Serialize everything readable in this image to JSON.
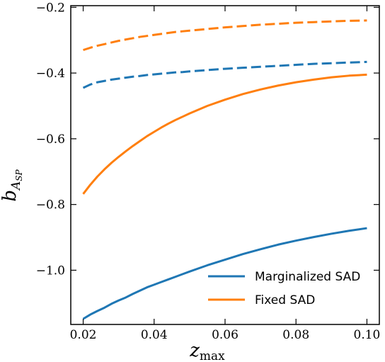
{
  "chart_data": {
    "type": "line",
    "xlabel": {
      "base": "z",
      "sub": "max"
    },
    "ylabel": {
      "base": "b",
      "sub": "A",
      "subsub": "SP"
    },
    "xlim": [
      0.0165,
      0.1035
    ],
    "ylim": [
      -1.165,
      -0.195
    ],
    "xticks": [
      0.02,
      0.04,
      0.06,
      0.08,
      0.1
    ],
    "xtick_labels": [
      "0.02",
      "0.04",
      "0.06",
      "0.08",
      "0.10"
    ],
    "yticks": [
      -0.2,
      -0.4,
      -0.6,
      -0.8,
      -1.0
    ],
    "ytick_labels": [
      "−0.2",
      "−0.4",
      "−0.6",
      "−0.8",
      "−1.0"
    ],
    "x": [
      0.02,
      0.022,
      0.024,
      0.026,
      0.028,
      0.03,
      0.032,
      0.034,
      0.036,
      0.038,
      0.04,
      0.042,
      0.044,
      0.046,
      0.048,
      0.05,
      0.055,
      0.06,
      0.065,
      0.07,
      0.075,
      0.08,
      0.085,
      0.09,
      0.095,
      0.1
    ],
    "series": [
      {
        "key": "marg_solid",
        "color": "#1f77b4",
        "dash": "solid",
        "values": [
          -1.148,
          -1.135,
          -1.124,
          -1.114,
          -1.102,
          -1.092,
          -1.083,
          -1.072,
          -1.062,
          -1.052,
          -1.044,
          -1.036,
          -1.028,
          -1.02,
          -1.012,
          -1.004,
          -0.985,
          -0.968,
          -0.951,
          -0.936,
          -0.922,
          -0.91,
          -0.899,
          -0.889,
          -0.88,
          -0.872
        ]
      },
      {
        "key": "fixed_solid",
        "color": "#ff7f0e",
        "dash": "solid",
        "values": [
          -0.768,
          -0.74,
          -0.715,
          -0.693,
          -0.673,
          -0.655,
          -0.638,
          -0.622,
          -0.607,
          -0.592,
          -0.579,
          -0.566,
          -0.554,
          -0.543,
          -0.533,
          -0.523,
          -0.5,
          -0.481,
          -0.464,
          -0.45,
          -0.438,
          -0.428,
          -0.42,
          -0.413,
          -0.408,
          -0.405
        ]
      },
      {
        "key": "marg_dashed",
        "color": "#1f77b4",
        "dash": "dashed",
        "values": [
          -0.445,
          -0.435,
          -0.428,
          -0.424,
          -0.42,
          -0.417,
          -0.414,
          -0.411,
          -0.409,
          -0.406,
          -0.404,
          -0.402,
          -0.4,
          -0.398,
          -0.397,
          -0.395,
          -0.391,
          -0.387,
          -0.384,
          -0.381,
          -0.378,
          -0.375,
          -0.372,
          -0.37,
          -0.368,
          -0.366
        ]
      },
      {
        "key": "fixed_dashed",
        "color": "#ff7f0e",
        "dash": "dashed",
        "values": [
          -0.33,
          -0.323,
          -0.317,
          -0.312,
          -0.307,
          -0.302,
          -0.298,
          -0.294,
          -0.29,
          -0.287,
          -0.284,
          -0.281,
          -0.278,
          -0.275,
          -0.273,
          -0.271,
          -0.266,
          -0.261,
          -0.257,
          -0.253,
          -0.25,
          -0.247,
          -0.245,
          -0.243,
          -0.241,
          -0.24
        ]
      }
    ],
    "legend": {
      "placement": "lower-right",
      "entries": [
        {
          "label": "Marginalized SAD",
          "color": "#1f77b4"
        },
        {
          "label": "Fixed SAD",
          "color": "#ff7f0e"
        }
      ]
    }
  }
}
